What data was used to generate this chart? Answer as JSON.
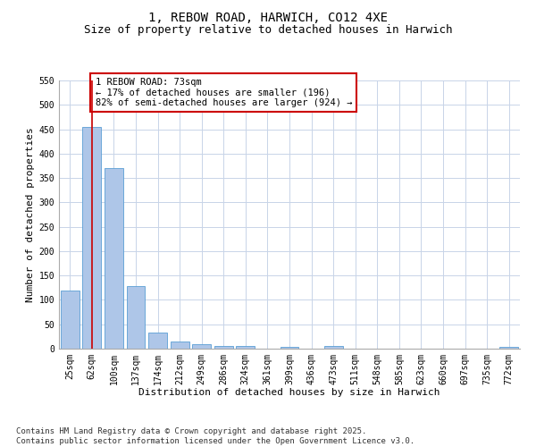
{
  "title": "1, REBOW ROAD, HARWICH, CO12 4XE",
  "subtitle": "Size of property relative to detached houses in Harwich",
  "xlabel": "Distribution of detached houses by size in Harwich",
  "ylabel": "Number of detached properties",
  "categories": [
    "25sqm",
    "62sqm",
    "100sqm",
    "137sqm",
    "174sqm",
    "212sqm",
    "249sqm",
    "286sqm",
    "324sqm",
    "361sqm",
    "399sqm",
    "436sqm",
    "473sqm",
    "511sqm",
    "548sqm",
    "585sqm",
    "623sqm",
    "660sqm",
    "697sqm",
    "735sqm",
    "772sqm"
  ],
  "values": [
    120,
    455,
    370,
    128,
    33,
    14,
    9,
    5,
    5,
    0,
    3,
    0,
    6,
    0,
    0,
    0,
    0,
    0,
    0,
    0,
    4
  ],
  "bar_color": "#aec6e8",
  "bar_edge_color": "#5a9fd4",
  "vline_x": 1,
  "vline_color": "#cc0000",
  "annotation_text": "1 REBOW ROAD: 73sqm\n← 17% of detached houses are smaller (196)\n82% of semi-detached houses are larger (924) →",
  "annotation_box_color": "#cc0000",
  "annotation_bg": "white",
  "ylim": [
    0,
    550
  ],
  "yticks": [
    0,
    50,
    100,
    150,
    200,
    250,
    300,
    350,
    400,
    450,
    500,
    550
  ],
  "grid_color": "#c8d4e8",
  "footer_line1": "Contains HM Land Registry data © Crown copyright and database right 2025.",
  "footer_line2": "Contains public sector information licensed under the Open Government Licence v3.0.",
  "title_fontsize": 10,
  "subtitle_fontsize": 9,
  "axis_label_fontsize": 8,
  "tick_fontsize": 7,
  "annotation_fontsize": 7.5,
  "footer_fontsize": 6.5
}
